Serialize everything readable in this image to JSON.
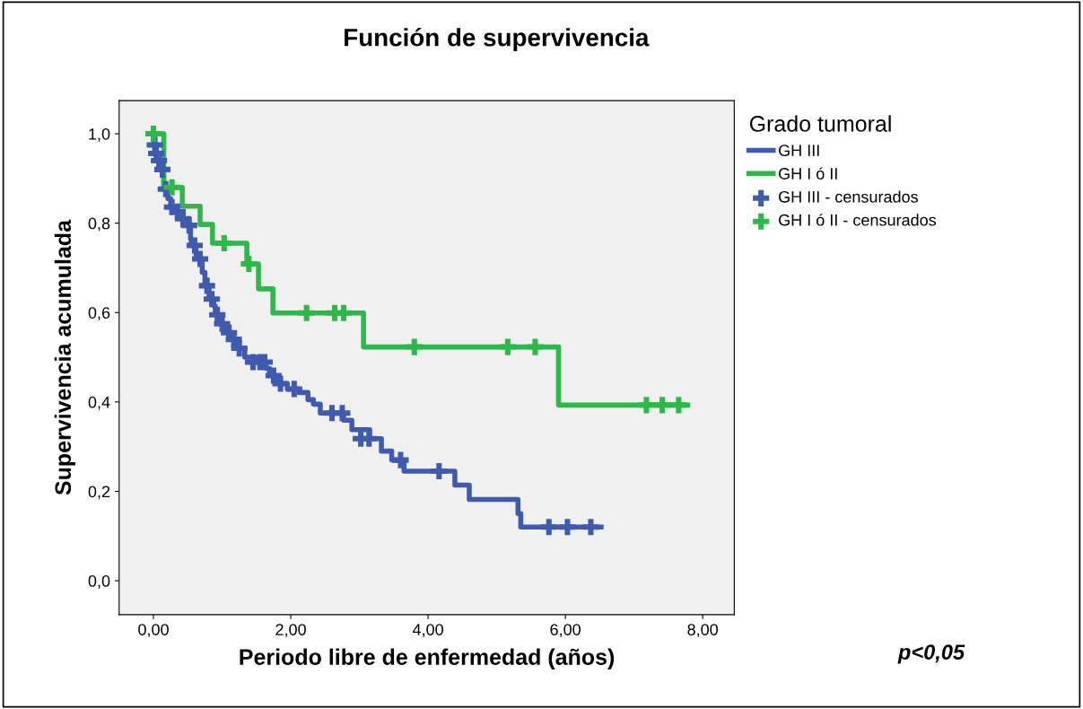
{
  "chart_data": {
    "type": "step",
    "title": "Función de supervivencia",
    "xlabel": "Periodo libre de enfermedad (años)",
    "ylabel": "Supervivencia acumulada",
    "legend_title": "Grado tumoral",
    "legend": "right",
    "grid": false,
    "xlim": [
      -0.5,
      8.46
    ],
    "ylim": [
      -0.076,
      1.074
    ],
    "xticks": [
      {
        "value": 0,
        "label": "0,00"
      },
      {
        "value": 2,
        "label": "2,00"
      },
      {
        "value": 4,
        "label": "4,00"
      },
      {
        "value": 6,
        "label": "6,00"
      },
      {
        "value": 8,
        "label": "8,00"
      }
    ],
    "yticks": [
      {
        "value": 0,
        "label": "0,0"
      },
      {
        "value": 0.2,
        "label": "0,2"
      },
      {
        "value": 0.4,
        "label": "0,4"
      },
      {
        "value": 0.6,
        "label": "0,6"
      },
      {
        "value": 0.8,
        "label": "0,8"
      },
      {
        "value": 1.0,
        "label": "1,0"
      }
    ],
    "annotations": [
      "p<0,05"
    ],
    "series": [
      {
        "name": "GH III",
        "color": "#3f5bb0",
        "x": [
          0,
          0.01,
          0.03,
          0.05,
          0.12,
          0.14,
          0.15,
          0.21,
          0.25,
          0.31,
          0.38,
          0.47,
          0.54,
          0.55,
          0.62,
          0.64,
          0.71,
          0.75,
          0.81,
          0.88,
          0.9,
          0.97,
          1.07,
          1.14,
          1.2,
          1.33,
          1.51,
          1.64,
          1.69,
          1.78,
          1.95,
          2.12,
          2.25,
          2.33,
          2.43,
          2.77,
          2.89,
          3.15,
          3.32,
          3.47,
          3.65,
          4.39,
          4.6,
          5.31,
          5.35,
          6.52
        ],
        "values": [
          1.0,
          0.975,
          0.956,
          0.94,
          0.92,
          0.905,
          0.876,
          0.855,
          0.836,
          0.826,
          0.81,
          0.795,
          0.765,
          0.75,
          0.73,
          0.72,
          0.69,
          0.66,
          0.63,
          0.615,
          0.595,
          0.575,
          0.555,
          0.54,
          0.52,
          0.5,
          0.489,
          0.475,
          0.459,
          0.441,
          0.429,
          0.421,
          0.405,
          0.395,
          0.375,
          0.359,
          0.338,
          0.318,
          0.29,
          0.27,
          0.245,
          0.214,
          0.182,
          0.15,
          0.12,
          0.12
        ]
      },
      {
        "name": "GH I ó II",
        "color": "#2eb84a",
        "x": [
          0,
          0.15,
          0.42,
          0.68,
          0.86,
          1.36,
          1.53,
          1.74,
          3.06,
          5.9,
          7.78
        ],
        "values": [
          1.0,
          0.88,
          0.838,
          0.797,
          0.755,
          0.709,
          0.653,
          0.599,
          0.523,
          0.393,
          0.393
        ]
      },
      {
        "name": "GH III - censurados",
        "type": "scatter",
        "marker": "cross",
        "color": "#3f5bb0",
        "x": [
          0.02,
          0.04,
          0.08,
          0.13,
          0.18,
          0.27,
          0.35,
          0.43,
          0.52,
          0.6,
          0.68,
          0.78,
          0.85,
          0.93,
          1.0,
          1.1,
          1.17,
          1.25,
          1.45,
          1.55,
          1.62,
          1.75,
          1.85,
          2.05,
          2.6,
          2.75,
          3.02,
          3.14,
          3.6,
          4.16,
          5.76,
          6.03,
          6.37
        ],
        "values": [
          0.975,
          0.956,
          0.94,
          0.92,
          0.876,
          0.836,
          0.826,
          0.81,
          0.795,
          0.75,
          0.72,
          0.66,
          0.63,
          0.595,
          0.575,
          0.555,
          0.54,
          0.52,
          0.489,
          0.489,
          0.489,
          0.459,
          0.441,
          0.429,
          0.375,
          0.375,
          0.318,
          0.318,
          0.27,
          0.245,
          0.12,
          0.12,
          0.12
        ]
      },
      {
        "name": "GH I ó II - censurados",
        "type": "scatter",
        "marker": "cross",
        "color": "#2eb84a",
        "x": [
          0,
          0.27,
          1.03,
          1.39,
          2.23,
          2.64,
          2.77,
          3.8,
          5.16,
          5.56,
          7.18,
          7.41,
          7.65
        ],
        "values": [
          1.0,
          0.88,
          0.755,
          0.709,
          0.599,
          0.599,
          0.599,
          0.523,
          0.523,
          0.523,
          0.393,
          0.393,
          0.393
        ]
      }
    ]
  }
}
